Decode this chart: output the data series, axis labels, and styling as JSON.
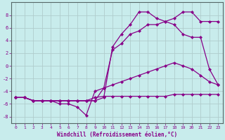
{
  "xlabel": "Windchill (Refroidissement éolien,°C)",
  "background_color": "#c8ecec",
  "grid_color": "#b0cccc",
  "line_color": "#880088",
  "xlim": [
    -0.5,
    23.5
  ],
  "ylim": [
    -9,
    10
  ],
  "xticks": [
    0,
    1,
    2,
    3,
    4,
    5,
    6,
    7,
    8,
    9,
    10,
    11,
    12,
    13,
    14,
    15,
    16,
    17,
    18,
    19,
    20,
    21,
    22,
    23
  ],
  "yticks": [
    -8,
    -6,
    -4,
    -2,
    0,
    2,
    4,
    6,
    8
  ],
  "series": [
    {
      "x": [
        0,
        1,
        2,
        3,
        4,
        5,
        6,
        7,
        8,
        9,
        10,
        11,
        12,
        13,
        14,
        15,
        16,
        17,
        18,
        19,
        20,
        21,
        22,
        23
      ],
      "y": [
        -5,
        -5,
        -5.5,
        -5.5,
        -5.5,
        -5.5,
        -5.5,
        -5.5,
        -5.5,
        -5.5,
        -5,
        3,
        5,
        6.5,
        8.5,
        8.5,
        7.5,
        7.0,
        6.5,
        5.0,
        4.5,
        4.5,
        -0.5,
        -3
      ]
    },
    {
      "x": [
        0,
        1,
        2,
        3,
        4,
        5,
        6,
        7,
        8,
        9,
        10,
        11,
        12,
        13,
        14,
        15,
        16,
        17,
        18,
        19,
        20,
        21,
        22,
        23
      ],
      "y": [
        -5,
        -5,
        -5.5,
        -5.5,
        -5.5,
        -5.5,
        -5.5,
        -5.5,
        -5.5,
        -5.5,
        -3.5,
        2.5,
        3.5,
        5.0,
        5.5,
        6.5,
        6.5,
        7.0,
        7.5,
        8.5,
        8.5,
        7.0,
        7.0,
        7.0
      ]
    },
    {
      "x": [
        0,
        1,
        2,
        3,
        4,
        5,
        6,
        7,
        8,
        9,
        10,
        11,
        12,
        13,
        14,
        15,
        16,
        17,
        18,
        19,
        20,
        21,
        22,
        23
      ],
      "y": [
        -5,
        -5,
        -5.5,
        -5.5,
        -5.5,
        -6,
        -6,
        -6.5,
        -7.8,
        -4,
        -3.5,
        -3,
        -2.5,
        -2,
        -1.5,
        -1,
        -0.5,
        0,
        0.5,
        0,
        -0.5,
        -1.5,
        -2.5,
        -3
      ]
    },
    {
      "x": [
        0,
        1,
        2,
        3,
        4,
        5,
        6,
        7,
        8,
        9,
        10,
        11,
        12,
        13,
        14,
        15,
        16,
        17,
        18,
        19,
        20,
        21,
        22,
        23
      ],
      "y": [
        -5,
        -5,
        -5.5,
        -5.5,
        -5.5,
        -5.5,
        -5.5,
        -5.5,
        -5.5,
        -5.0,
        -4.8,
        -4.8,
        -4.8,
        -4.8,
        -4.8,
        -4.8,
        -4.8,
        -4.8,
        -4.5,
        -4.5,
        -4.5,
        -4.5,
        -4.5,
        -4.5
      ]
    }
  ]
}
